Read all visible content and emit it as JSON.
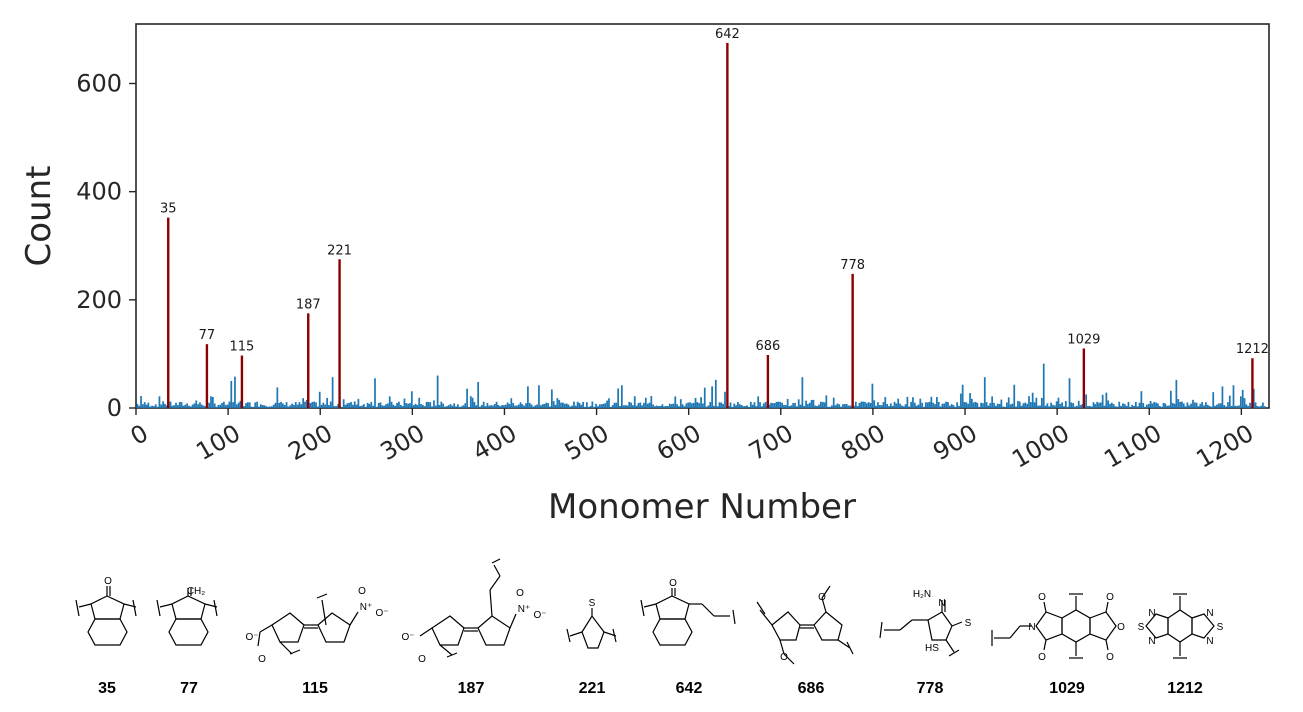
{
  "chart_data": {
    "type": "bar",
    "xlabel": "Monomer Number",
    "ylabel": "Count",
    "xlim": [
      0,
      1230
    ],
    "ylim": [
      0,
      710
    ],
    "x_ticks": [
      0,
      100,
      200,
      300,
      400,
      500,
      600,
      700,
      800,
      900,
      1000,
      1100,
      1200
    ],
    "y_ticks": [
      0,
      200,
      400,
      600
    ],
    "colors": {
      "background_bars": "#1f77b4",
      "highlight_bars": "#8b0000",
      "axis": "#262626"
    },
    "highlighted": [
      {
        "label": "35",
        "x": 35,
        "value": 352
      },
      {
        "label": "77",
        "x": 77,
        "value": 118
      },
      {
        "label": "115",
        "x": 115,
        "value": 97
      },
      {
        "label": "187",
        "x": 187,
        "value": 175
      },
      {
        "label": "221",
        "x": 221,
        "value": 275
      },
      {
        "label": "642",
        "x": 642,
        "value": 675
      },
      {
        "label": "686",
        "x": 686,
        "value": 98
      },
      {
        "label": "778",
        "x": 778,
        "value": 248
      },
      {
        "label": "1029",
        "x": 1029,
        "value": 110
      },
      {
        "label": "1212",
        "x": 1212,
        "value": 92
      }
    ],
    "background_series": {
      "name": "",
      "notable_values": [
        {
          "x": 5,
          "value": 22
        },
        {
          "x": 103,
          "value": 50
        },
        {
          "x": 107,
          "value": 58
        },
        {
          "x": 154,
          "value": 38
        },
        {
          "x": 213,
          "value": 57
        },
        {
          "x": 260,
          "value": 55
        },
        {
          "x": 328,
          "value": 60
        },
        {
          "x": 372,
          "value": 48
        },
        {
          "x": 425,
          "value": 40
        },
        {
          "x": 438,
          "value": 42
        },
        {
          "x": 528,
          "value": 42
        },
        {
          "x": 625,
          "value": 40
        },
        {
          "x": 630,
          "value": 52
        },
        {
          "x": 640,
          "value": 30
        },
        {
          "x": 723,
          "value": 57
        },
        {
          "x": 800,
          "value": 45
        },
        {
          "x": 898,
          "value": 43
        },
        {
          "x": 921,
          "value": 57
        },
        {
          "x": 953,
          "value": 43
        },
        {
          "x": 985,
          "value": 82
        },
        {
          "x": 1013,
          "value": 55
        },
        {
          "x": 1130,
          "value": 52
        },
        {
          "x": 1180,
          "value": 40
        },
        {
          "x": 1192,
          "value": 42
        }
      ],
      "typical_range": [
        0,
        25
      ]
    }
  },
  "structures": {
    "captions": [
      "35",
      "77",
      "115",
      "187",
      "221",
      "642",
      "686",
      "778",
      "1029",
      "1212"
    ],
    "atom_labels": {
      "o": "O",
      "ch2": "CH₂",
      "s": "S",
      "n": "N",
      "nplus": "N⁺",
      "ominus": "O⁻",
      "hs": "HS",
      "h2n": "H₂N"
    }
  }
}
